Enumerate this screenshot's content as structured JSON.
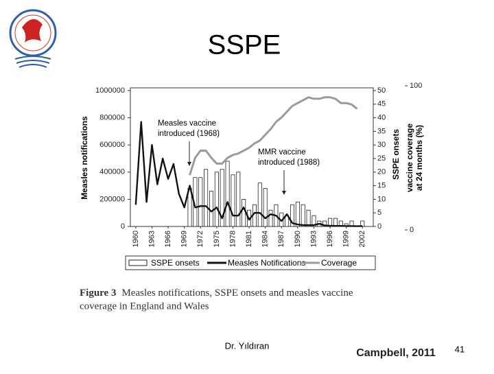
{
  "slide": {
    "title": "SSPE",
    "author": "Dr. Yıldıran",
    "source": "Campbell, 2011",
    "page": "41"
  },
  "chart_data": {
    "type": "combo",
    "x": [
      1960,
      1961,
      1962,
      1963,
      1964,
      1965,
      1966,
      1967,
      1968,
      1969,
      1970,
      1971,
      1972,
      1973,
      1974,
      1975,
      1976,
      1977,
      1978,
      1979,
      1980,
      1981,
      1982,
      1983,
      1984,
      1985,
      1986,
      1987,
      1988,
      1989,
      1990,
      1991,
      1992,
      1993,
      1994,
      1995,
      1996,
      1997,
      1998,
      1999,
      2000,
      2001,
      2002
    ],
    "xlim": [
      1959,
      2004
    ],
    "xticks": [
      1960,
      1963,
      1966,
      1969,
      1972,
      1975,
      1978,
      1981,
      1984,
      1987,
      1990,
      1993,
      1996,
      1999,
      2002
    ],
    "ylabel": "Measles notifications",
    "ylim": [
      0,
      1000000
    ],
    "yticks": [
      0,
      200000,
      400000,
      600000,
      800000,
      1000000
    ],
    "y2label": "SSPE onsets",
    "y2lim": [
      0,
      50
    ],
    "y2ticks": [
      0,
      5,
      10,
      15,
      20,
      25,
      30,
      35,
      40,
      45,
      50
    ],
    "y3label": [
      "vaccine coverage",
      "at 24 months (%)"
    ],
    "y3lim": [
      0,
      100
    ],
    "y3ticks": [
      0,
      100
    ],
    "series": [
      {
        "name": "SSPE onsets",
        "type": "bar",
        "axis": "y2",
        "color": "#ffffff",
        "values": [
          null,
          null,
          null,
          null,
          null,
          null,
          null,
          null,
          null,
          null,
          14,
          18,
          18,
          21,
          13,
          20,
          21,
          24,
          19,
          20,
          10,
          6,
          8,
          16,
          14,
          6,
          8,
          5,
          4,
          8,
          9,
          8,
          6,
          4,
          2,
          2,
          3,
          3,
          2,
          1,
          2,
          0,
          2
        ]
      },
      {
        "name": "Measles Notifications",
        "type": "line",
        "axis": "y",
        "color": "#111111",
        "values": [
          160000,
          770000,
          180000,
          600000,
          310000,
          500000,
          350000,
          460000,
          240000,
          140000,
          300000,
          140000,
          150000,
          150000,
          110000,
          140000,
          60000,
          180000,
          80000,
          80000,
          140000,
          50000,
          100000,
          100000,
          60000,
          90000,
          80000,
          40000,
          90000,
          25000,
          15000,
          10000,
          10000,
          10000,
          20000,
          8000,
          5000,
          4000,
          4000,
          3000,
          3000,
          2000,
          3000
        ]
      },
      {
        "name": "Coverage",
        "type": "line",
        "axis": "y3",
        "color": "#9a9a9a",
        "values": [
          null,
          null,
          null,
          null,
          null,
          null,
          null,
          null,
          null,
          null,
          38,
          50,
          55,
          55,
          50,
          46,
          46,
          50,
          52,
          53,
          55,
          57,
          60,
          62,
          66,
          70,
          75,
          78,
          82,
          86,
          88,
          90,
          92,
          91,
          91,
          92,
          92,
          91,
          88,
          88,
          87,
          84,
          null
        ]
      }
    ],
    "annotations": [
      {
        "text": [
          "Measles vaccine",
          "introduced (1968)"
        ]
      },
      {
        "text": [
          "MMR vaccine",
          "introduced (1988)"
        ]
      }
    ],
    "caption": {
      "label": "Figure 3",
      "text": [
        "Measles notifications, SSPE onsets and measles vaccine",
        "coverage in England and Wales"
      ]
    }
  }
}
